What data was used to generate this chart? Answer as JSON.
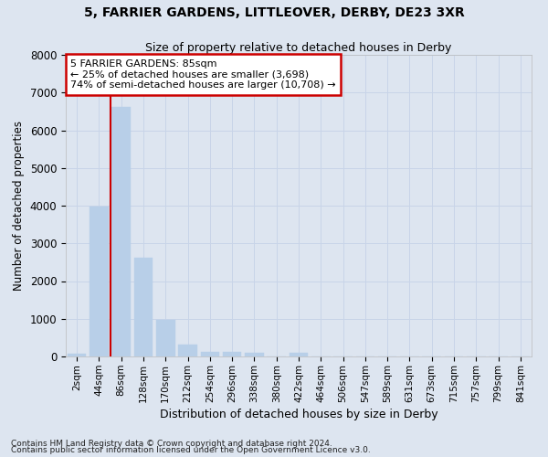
{
  "title1": "5, FARRIER GARDENS, LITTLEOVER, DERBY, DE23 3XR",
  "title2": "Size of property relative to detached houses in Derby",
  "xlabel": "Distribution of detached houses by size in Derby",
  "ylabel": "Number of detached properties",
  "categories": [
    "2sqm",
    "44sqm",
    "86sqm",
    "128sqm",
    "170sqm",
    "212sqm",
    "254sqm",
    "296sqm",
    "338sqm",
    "380sqm",
    "422sqm",
    "464sqm",
    "506sqm",
    "547sqm",
    "589sqm",
    "631sqm",
    "673sqm",
    "715sqm",
    "757sqm",
    "799sqm",
    "841sqm"
  ],
  "values": [
    75,
    3980,
    6620,
    2620,
    960,
    320,
    130,
    110,
    90,
    0,
    90,
    0,
    0,
    0,
    0,
    0,
    0,
    0,
    0,
    0,
    0
  ],
  "bar_color": "#b8cfe8",
  "bar_edge_color": "#b8cfe8",
  "grid_color": "#c8d4e8",
  "background_color": "#dde5f0",
  "annotation_box_color": "#ffffff",
  "annotation_border_color": "#cc0000",
  "vline_color": "#cc0000",
  "vline_x": 1.5,
  "ylim": [
    0,
    8000
  ],
  "yticks": [
    0,
    1000,
    2000,
    3000,
    4000,
    5000,
    6000,
    7000,
    8000
  ],
  "annotation_lines": [
    "5 FARRIER GARDENS: 85sqm",
    "← 25% of detached houses are smaller (3,698)",
    "74% of semi-detached houses are larger (10,708) →"
  ],
  "footnote1": "Contains HM Land Registry data © Crown copyright and database right 2024.",
  "footnote2": "Contains public sector information licensed under the Open Government Licence v3.0."
}
